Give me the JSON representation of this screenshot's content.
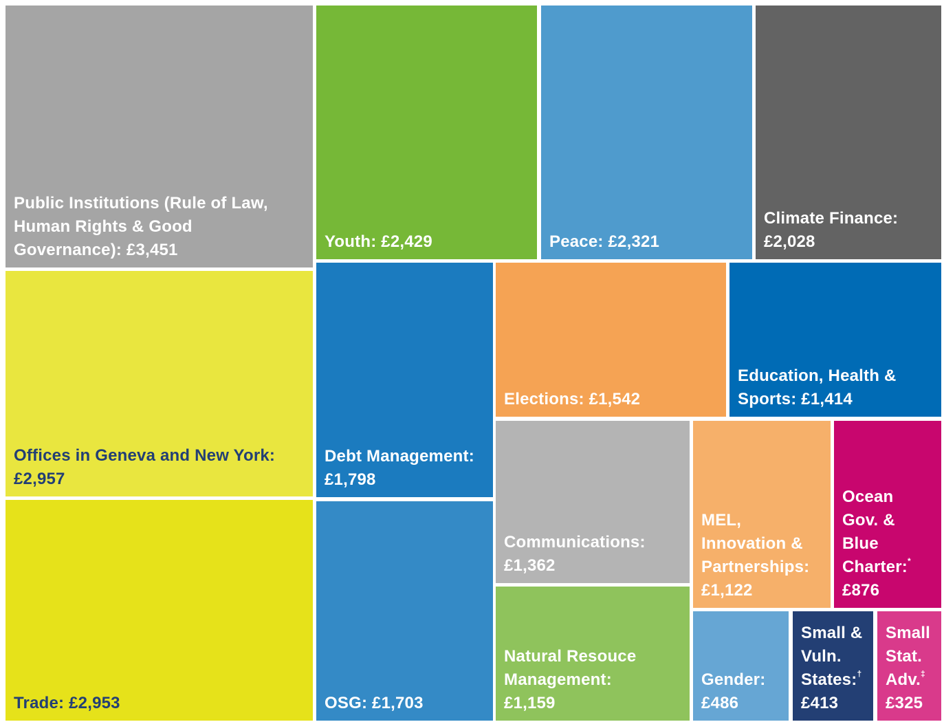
{
  "chart_data": {
    "type": "treemap",
    "categories": [
      "Public Institutions (Rule of Law, Human Rights & Good Governance):",
      "Offices in Geneva and New York:",
      "Trade:",
      "Youth:",
      "Peace:",
      "Climate Finance:",
      "Debt Management:",
      "OSG:",
      "Elections:",
      "Education, Health & Sports:",
      "Communications:",
      "Natural Resouce Management:",
      "MEL, Innovation & Partnerships:",
      "Ocean Gov. & Blue Charter:",
      "Gender:",
      "Small & Vuln. States:",
      "Small Stat. Adv."
    ],
    "footnote_marks": [
      null,
      null,
      null,
      null,
      null,
      null,
      null,
      null,
      null,
      null,
      null,
      null,
      null,
      "*",
      null,
      "†",
      "‡"
    ],
    "values": [
      3451,
      2957,
      2953,
      2429,
      2321,
      2028,
      1798,
      1703,
      1542,
      1414,
      1362,
      1159,
      1122,
      876,
      486,
      413,
      325
    ],
    "value_labels": [
      "£3,451",
      "£2,957",
      "£2,953",
      "£2,429",
      "£2,321",
      "£2,028",
      "£1,798",
      "£1,703",
      "£1,542",
      "£1,414",
      "£1,362",
      "£1,159",
      "£1,122",
      "£876",
      "£486",
      "£413",
      "£325"
    ],
    "colors": [
      "#a5a5a5",
      "#e9e63f",
      "#e6e21a",
      "#76b837",
      "#4f9bcd",
      "#636363",
      "#1b7bbf",
      "#348ac6",
      "#f5a354",
      "#006bb5",
      "#b4b4b4",
      "#8fc35c",
      "#f6b06a",
      "#c8066e",
      "#66a6d4",
      "#233f74",
      "#d93a8b"
    ],
    "text_colors": [
      "#ffffff",
      "#233f74",
      "#233f74",
      "#ffffff",
      "#ffffff",
      "#ffffff",
      "#ffffff",
      "#ffffff",
      "#ffffff",
      "#ffffff",
      "#ffffff",
      "#ffffff",
      "#ffffff",
      "#ffffff",
      "#ffffff",
      "#ffffff",
      "#ffffff"
    ]
  }
}
